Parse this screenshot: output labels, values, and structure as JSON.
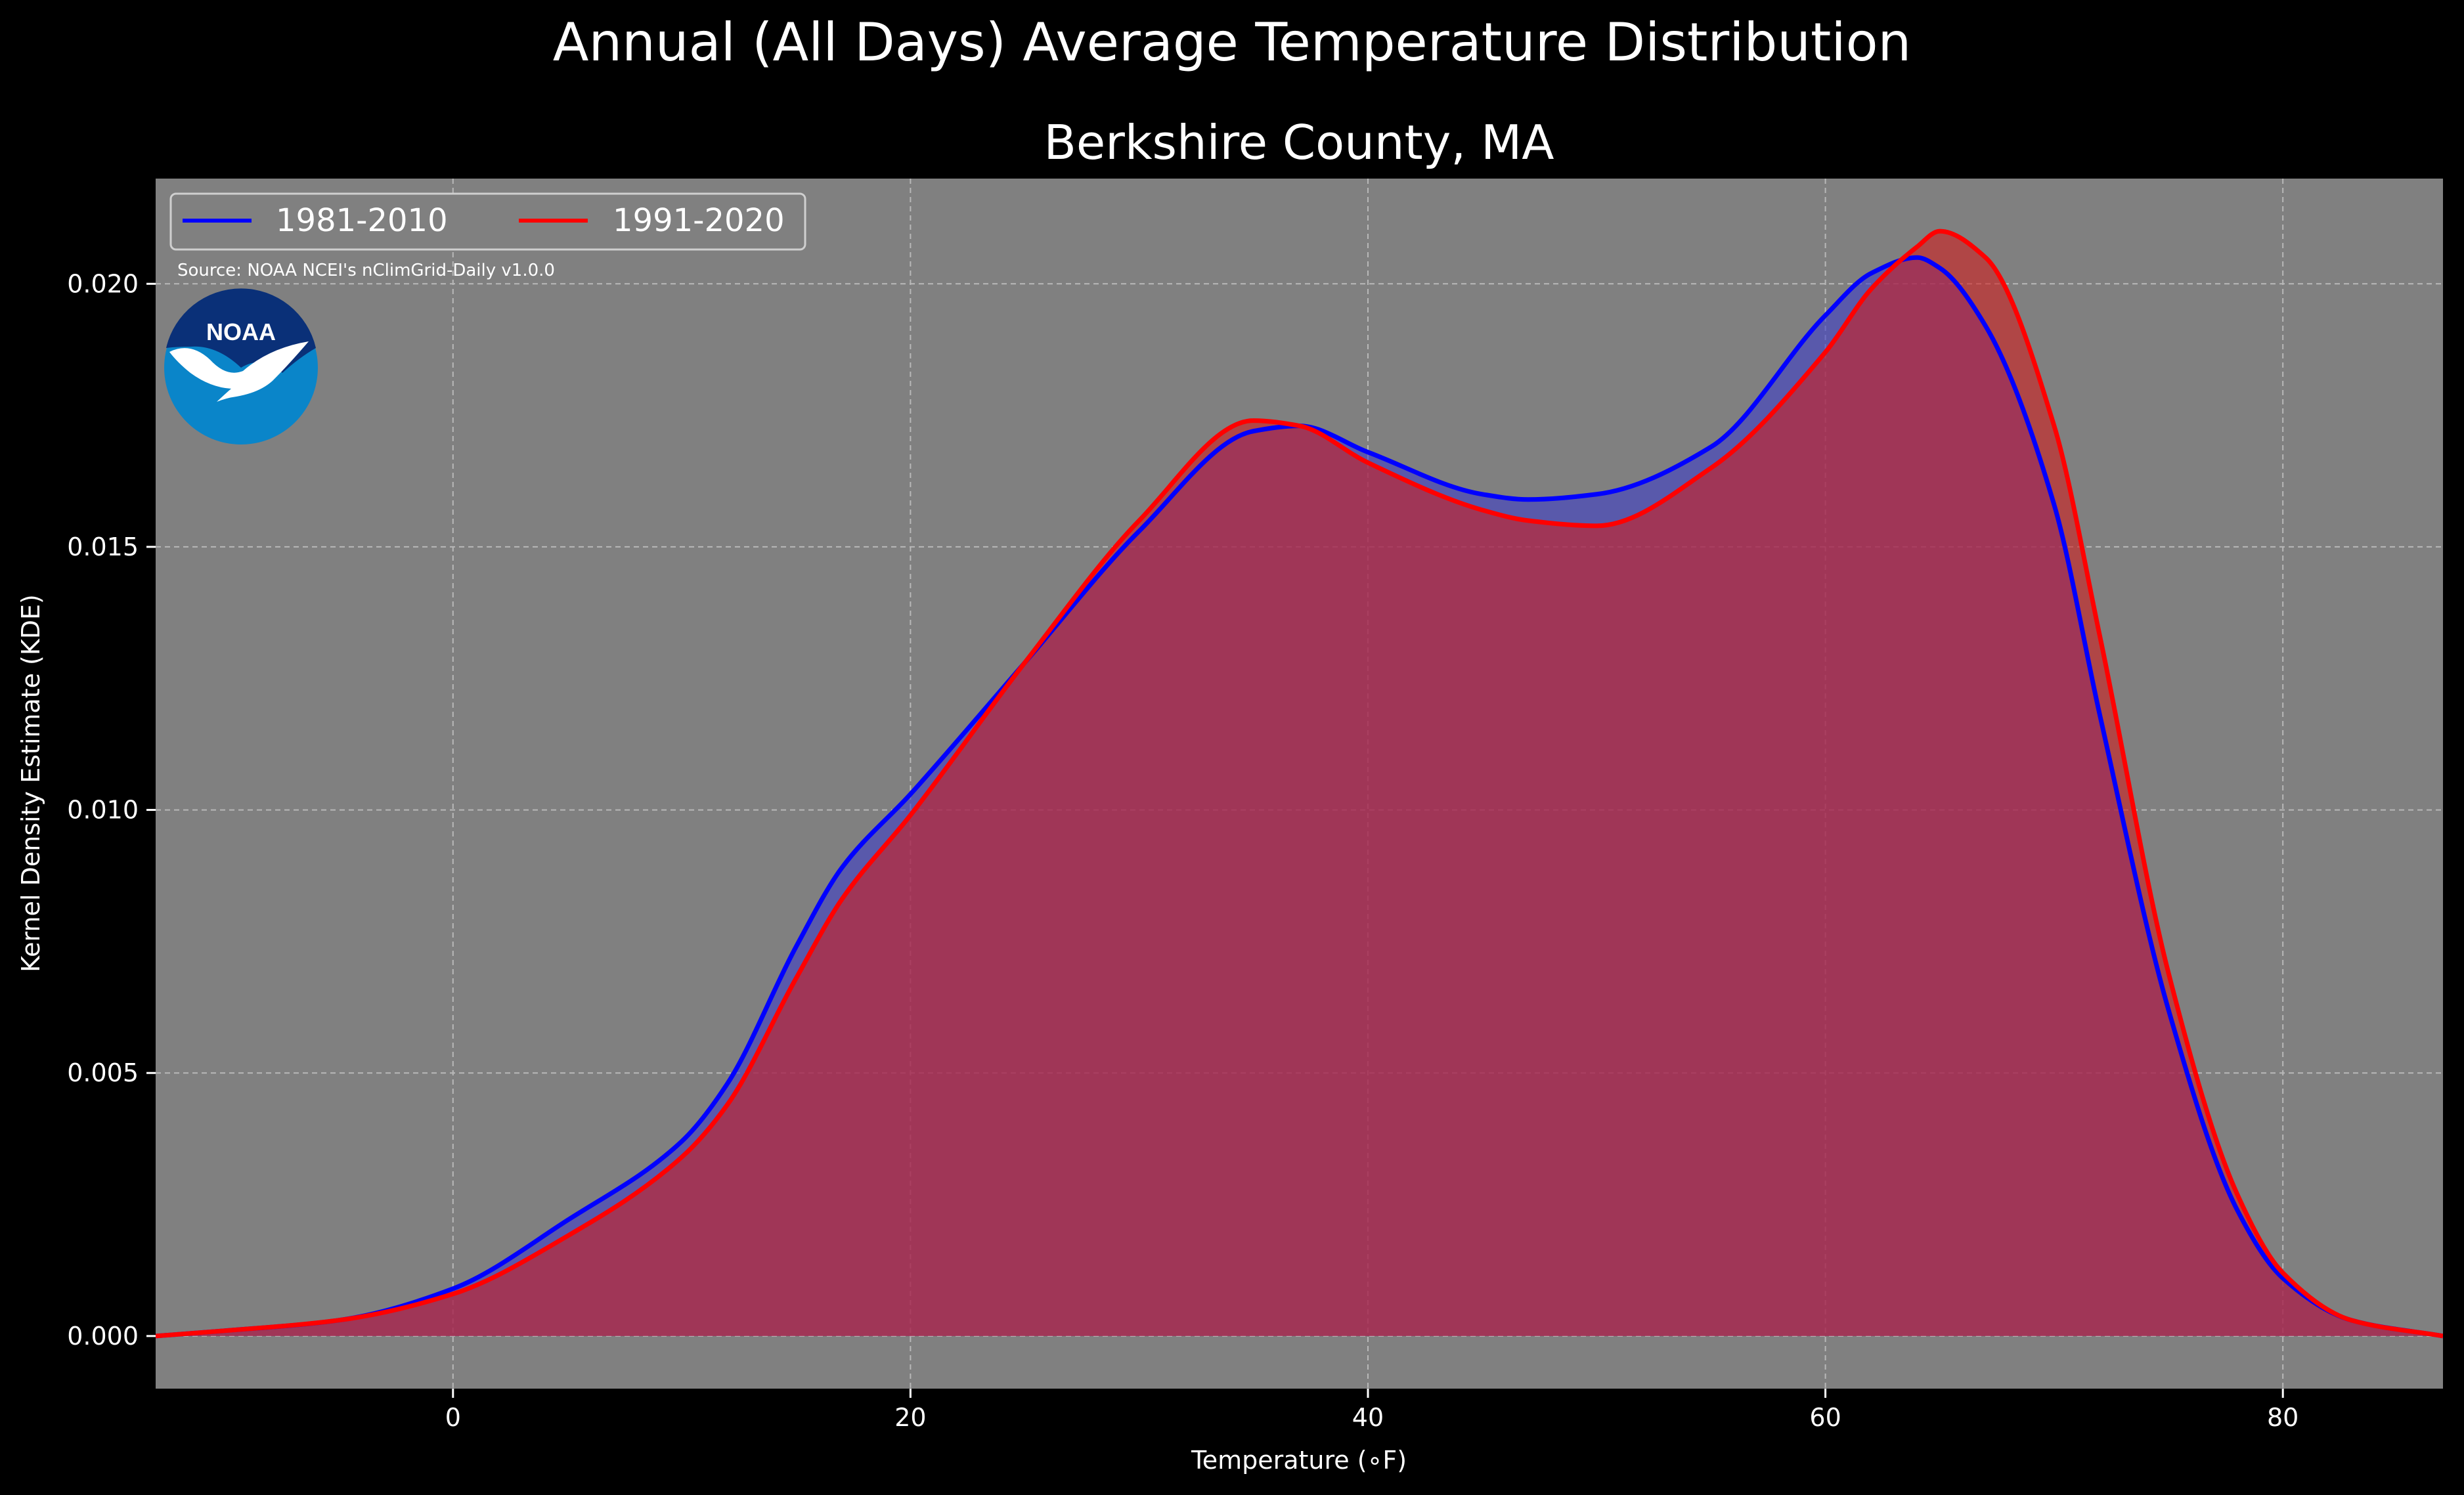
{
  "chart_data": {
    "type": "area",
    "title": "Annual (All Days) Average Temperature Distribution",
    "subtitle": "Berkshire County, MA",
    "xlabel": "Temperature (∘F)",
    "ylabel": "Kernel Density Estimate (KDE)",
    "xlim": [
      -13,
      87
    ],
    "ylim": [
      -0.001,
      0.022
    ],
    "xticks": [
      0,
      20,
      40,
      60,
      80
    ],
    "yticks": [
      0.0,
      0.005,
      0.01,
      0.015,
      0.02
    ],
    "ytick_labels": [
      "0.000",
      "0.005",
      "0.010",
      "0.015",
      "0.020"
    ],
    "grid": true,
    "legend_position": "top-left",
    "source": "Source: NOAA NCEI's nClimGrid-Daily v1.0.0",
    "logo_text": "NOAA",
    "x": [
      -13,
      -10,
      -5,
      0,
      5,
      10,
      12,
      15,
      17,
      20,
      25,
      30,
      35,
      37,
      40,
      45,
      47,
      50,
      55,
      60,
      62,
      64,
      65,
      67,
      70,
      72,
      75,
      78,
      80,
      83,
      87
    ],
    "series": [
      {
        "name": "1981-2010",
        "color": "#0000ff",
        "fill": "#4040c8",
        "values": [
          0.0,
          0.0001,
          0.0003,
          0.0009,
          0.0022,
          0.0037,
          0.0048,
          0.0074,
          0.0089,
          0.0103,
          0.0128,
          0.0153,
          0.0172,
          0.0173,
          0.0168,
          0.016,
          0.0159,
          0.016,
          0.0169,
          0.0194,
          0.0202,
          0.0205,
          0.0203,
          0.0192,
          0.0158,
          0.0118,
          0.0062,
          0.0024,
          0.0011,
          0.0003,
          0.0
        ]
      },
      {
        "name": "1991-2020",
        "color": "#ff0000",
        "fill": "#d02020",
        "values": [
          0.0,
          0.0001,
          0.0003,
          0.0008,
          0.0019,
          0.0034,
          0.0044,
          0.0068,
          0.0083,
          0.0099,
          0.0128,
          0.0155,
          0.0174,
          0.0173,
          0.0166,
          0.0157,
          0.0155,
          0.0154,
          0.0165,
          0.0187,
          0.0199,
          0.0207,
          0.021,
          0.0205,
          0.0173,
          0.0133,
          0.0069,
          0.0027,
          0.0012,
          0.0003,
          0.0
        ]
      }
    ]
  }
}
